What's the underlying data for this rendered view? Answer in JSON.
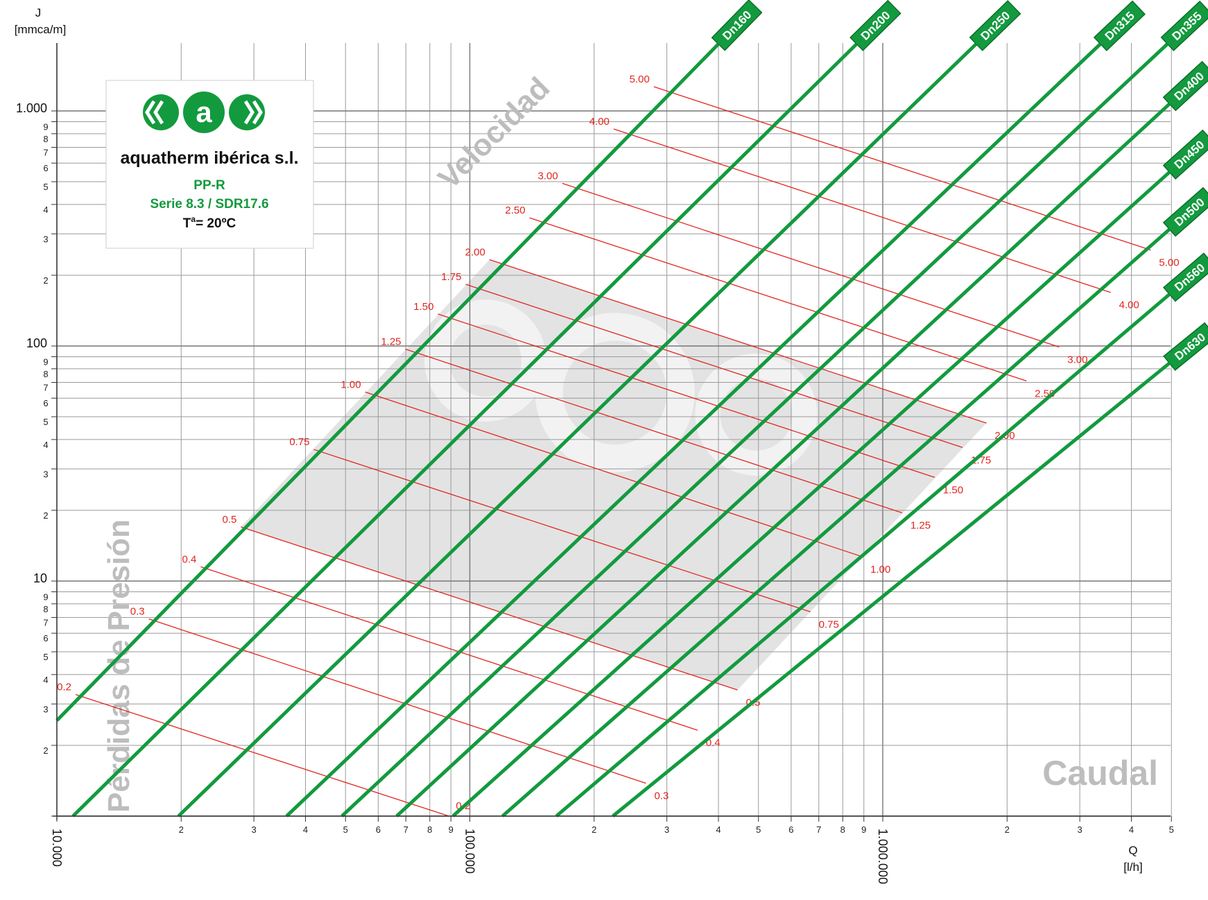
{
  "chart_data": {
    "type": "line",
    "x_axis": {
      "scale": "log",
      "range": [
        10000,
        5000000
      ],
      "unit_label": "[l/h]",
      "symbol": "Q",
      "major_labels": [
        "10.000",
        "100.000",
        "1.000.000"
      ],
      "minor_ticks": [
        2,
        3,
        4,
        5,
        6,
        7,
        8,
        9
      ]
    },
    "y_axis": {
      "scale": "log",
      "range": [
        1,
        3000
      ],
      "symbol": "J",
      "unit_label": "[mmca/m]",
      "major_labels": [
        "1.000",
        "100",
        "10"
      ],
      "major_values": [
        1000,
        100,
        10
      ],
      "minor_ticks": [
        2,
        3,
        4,
        5,
        6,
        7,
        8,
        9
      ]
    },
    "series": [
      {
        "name": "Dn160",
        "x": [
          10000,
          1000000
        ],
        "y": [
          2.55,
          10000
        ]
      },
      {
        "name": "Dn200",
        "x": [
          10940,
          1000000
        ],
        "y": [
          1.0,
          2480
        ]
      },
      {
        "name": "Dn250",
        "x": [
          19700,
          1000000
        ],
        "y": [
          1.0,
          795
        ]
      },
      {
        "name": "Dn315",
        "x": [
          36000,
          1000000
        ],
        "y": [
          1.0,
          255
        ]
      },
      {
        "name": "Dn355",
        "x": [
          49000,
          1000000
        ],
        "y": [
          1.0,
          142
        ]
      },
      {
        "name": "Dn400",
        "x": [
          66500,
          1000000
        ],
        "y": [
          1.0,
          80.5
        ]
      },
      {
        "name": "Dn450",
        "x": [
          91000,
          1000000
        ],
        "y": [
          1.0,
          44.0
        ]
      },
      {
        "name": "Dn500",
        "x": [
          120000,
          1000000
        ],
        "y": [
          1.0,
          26.5
        ]
      },
      {
        "name": "Dn560",
        "x": [
          162000,
          1000000
        ],
        "y": [
          1.0,
          15.2
        ]
      },
      {
        "name": "Dn630",
        "x": [
          222000,
          1000000
        ],
        "y": [
          1.0,
          8.6
        ]
      }
    ],
    "velocity_lines": [
      {
        "label": "0.2",
        "start": [
          11100,
          3.29
        ],
        "end": [
          89000,
          1.0
        ]
      },
      {
        "label": "0.3",
        "start": [
          16700,
          6.9
        ],
        "end": [
          267000,
          1.38
        ]
      },
      {
        "label": "0.4",
        "start": [
          22300,
          11.5
        ],
        "end": [
          356000,
          2.32
        ]
      },
      {
        "label": "0.5",
        "start": [
          27900,
          17.0
        ],
        "end": [
          445000,
          3.44
        ]
      },
      {
        "label": "0.75",
        "start": [
          41900,
          36.3
        ],
        "end": [
          668000,
          7.4
        ]
      },
      {
        "label": "1.00",
        "start": [
          55800,
          63.7
        ],
        "end": [
          891000,
          12.7
        ]
      },
      {
        "label": "1.25",
        "start": [
          69800,
          97.0
        ],
        "end": [
          1114000,
          19.5
        ]
      },
      {
        "label": "1.50",
        "start": [
          83700,
          136.8
        ],
        "end": [
          1336000,
          27.6
        ]
      },
      {
        "label": "1.75",
        "start": [
          97700,
          183
        ],
        "end": [
          1560000,
          37.0
        ]
      },
      {
        "label": "2.00",
        "start": [
          111600,
          233
        ],
        "end": [
          1782000,
          47.0
        ]
      },
      {
        "label": "2.50",
        "start": [
          139500,
          351
        ],
        "end": [
          2228000,
          71.0
        ]
      },
      {
        "label": "3.00",
        "start": [
          167400,
          492
        ],
        "end": [
          2673000,
          99.0
        ]
      },
      {
        "label": "4.00",
        "start": [
          223000,
          838
        ],
        "end": [
          3564000,
          169
        ]
      },
      {
        "label": "5.00",
        "start": [
          279000,
          1268
        ],
        "end": [
          4455000,
          256
        ]
      }
    ],
    "annotations": [
      "Velocidad",
      "Pérdidas de Presión",
      "Caudal"
    ]
  },
  "logo": {
    "company": "aquatherm ibérica s.l.",
    "line1": "PP-R",
    "line2": "Serie 8.3 / SDR17.6",
    "line3_main": "T",
    "line3_sup": "a",
    "line3_rest": "= 20ºC"
  },
  "colors": {
    "pipe": "#139a3e",
    "velocity": "#e0261f",
    "grid": "#9a9a9a",
    "shade": "#e3e3e3",
    "watermark": "#c4c4c4"
  }
}
